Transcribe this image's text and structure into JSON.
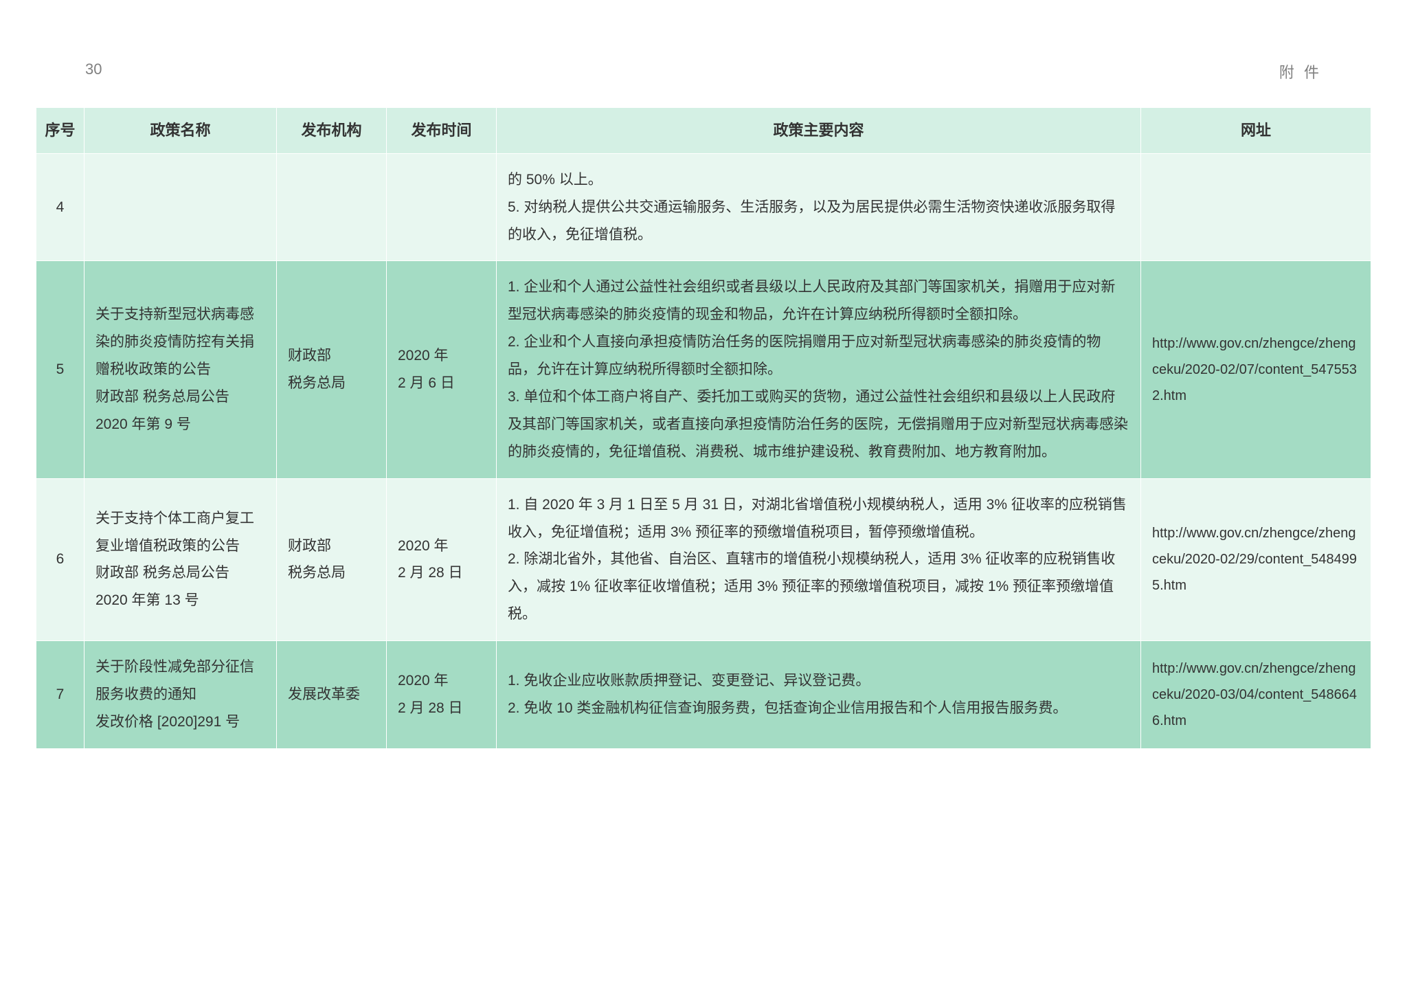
{
  "header": {
    "page_number": "30",
    "section_label": "附 件"
  },
  "table": {
    "columns": {
      "idx": "序号",
      "name": "政策名称",
      "org": "发布机构",
      "date": "发布时间",
      "content": "政策主要内容",
      "url": "网址"
    },
    "rows": [
      {
        "idx": "4",
        "name": "",
        "org": "",
        "date": "",
        "content": "的 50% 以上。\n5. 对纳税人提供公共交通运输服务、生活服务，以及为居民提供必需生活物资快递收派服务取得的收入，免征增值税。",
        "url": ""
      },
      {
        "idx": "5",
        "name": "关于支持新型冠状病毒感染的肺炎疫情防控有关捐赠税收政策的公告\n财政部 税务总局公告\n2020 年第 9 号",
        "org": "财政部\n税务总局",
        "date": "2020 年\n2 月 6 日",
        "content": "1. 企业和个人通过公益性社会组织或者县级以上人民政府及其部门等国家机关，捐赠用于应对新型冠状病毒感染的肺炎疫情的现金和物品，允许在计算应纳税所得额时全额扣除。\n2. 企业和个人直接向承担疫情防治任务的医院捐赠用于应对新型冠状病毒感染的肺炎疫情的物品，允许在计算应纳税所得额时全额扣除。\n3. 单位和个体工商户将自产、委托加工或购买的货物，通过公益性社会组织和县级以上人民政府及其部门等国家机关，或者直接向承担疫情防治任务的医院，无偿捐赠用于应对新型冠状病毒感染的肺炎疫情的，免征增值税、消费税、城市维护建设税、教育费附加、地方教育附加。",
        "url": "http://www.gov.cn/zhengce/zhengceku/2020-02/07/content_5475532.htm"
      },
      {
        "idx": "6",
        "name": "关于支持个体工商户复工复业增值税政策的公告\n财政部 税务总局公告\n2020 年第 13 号",
        "org": "财政部\n税务总局",
        "date": "2020 年\n2 月 28 日",
        "content": "1. 自 2020 年 3 月 1 日至 5 月 31 日，对湖北省增值税小规模纳税人，适用 3% 征收率的应税销售收入，免征增值税；适用 3% 预征率的预缴增值税项目，暂停预缴增值税。\n2. 除湖北省外，其他省、自治区、直辖市的增值税小规模纳税人，适用 3% 征收率的应税销售收入，减按 1% 征收率征收增值税；适用 3% 预征率的预缴增值税项目，减按 1% 预征率预缴增值税。",
        "url": "http://www.gov.cn/zhengce/zhengceku/2020-02/29/content_5484995.htm"
      },
      {
        "idx": "7",
        "name": "关于阶段性减免部分征信服务收费的通知\n发改价格 [2020]291 号",
        "org": "发展改革委",
        "date": "2020 年\n2 月 28 日",
        "content": "1. 免收企业应收账款质押登记、变更登记、异议登记费。\n2. 免收 10 类金融机构征信查询服务费，包括查询企业信用报告和个人信用报告服务费。",
        "url": "http://www.gov.cn/zhengce/zhengceku/2020-03/04/content_5486646.htm"
      }
    ]
  },
  "colors": {
    "header_bg": "#d4f0e4",
    "row_even_bg": "#e8f7f0",
    "row_odd_bg": "#a4dcc4",
    "border": "#ffffff",
    "text": "#333333",
    "page_header_text": "#808080"
  }
}
